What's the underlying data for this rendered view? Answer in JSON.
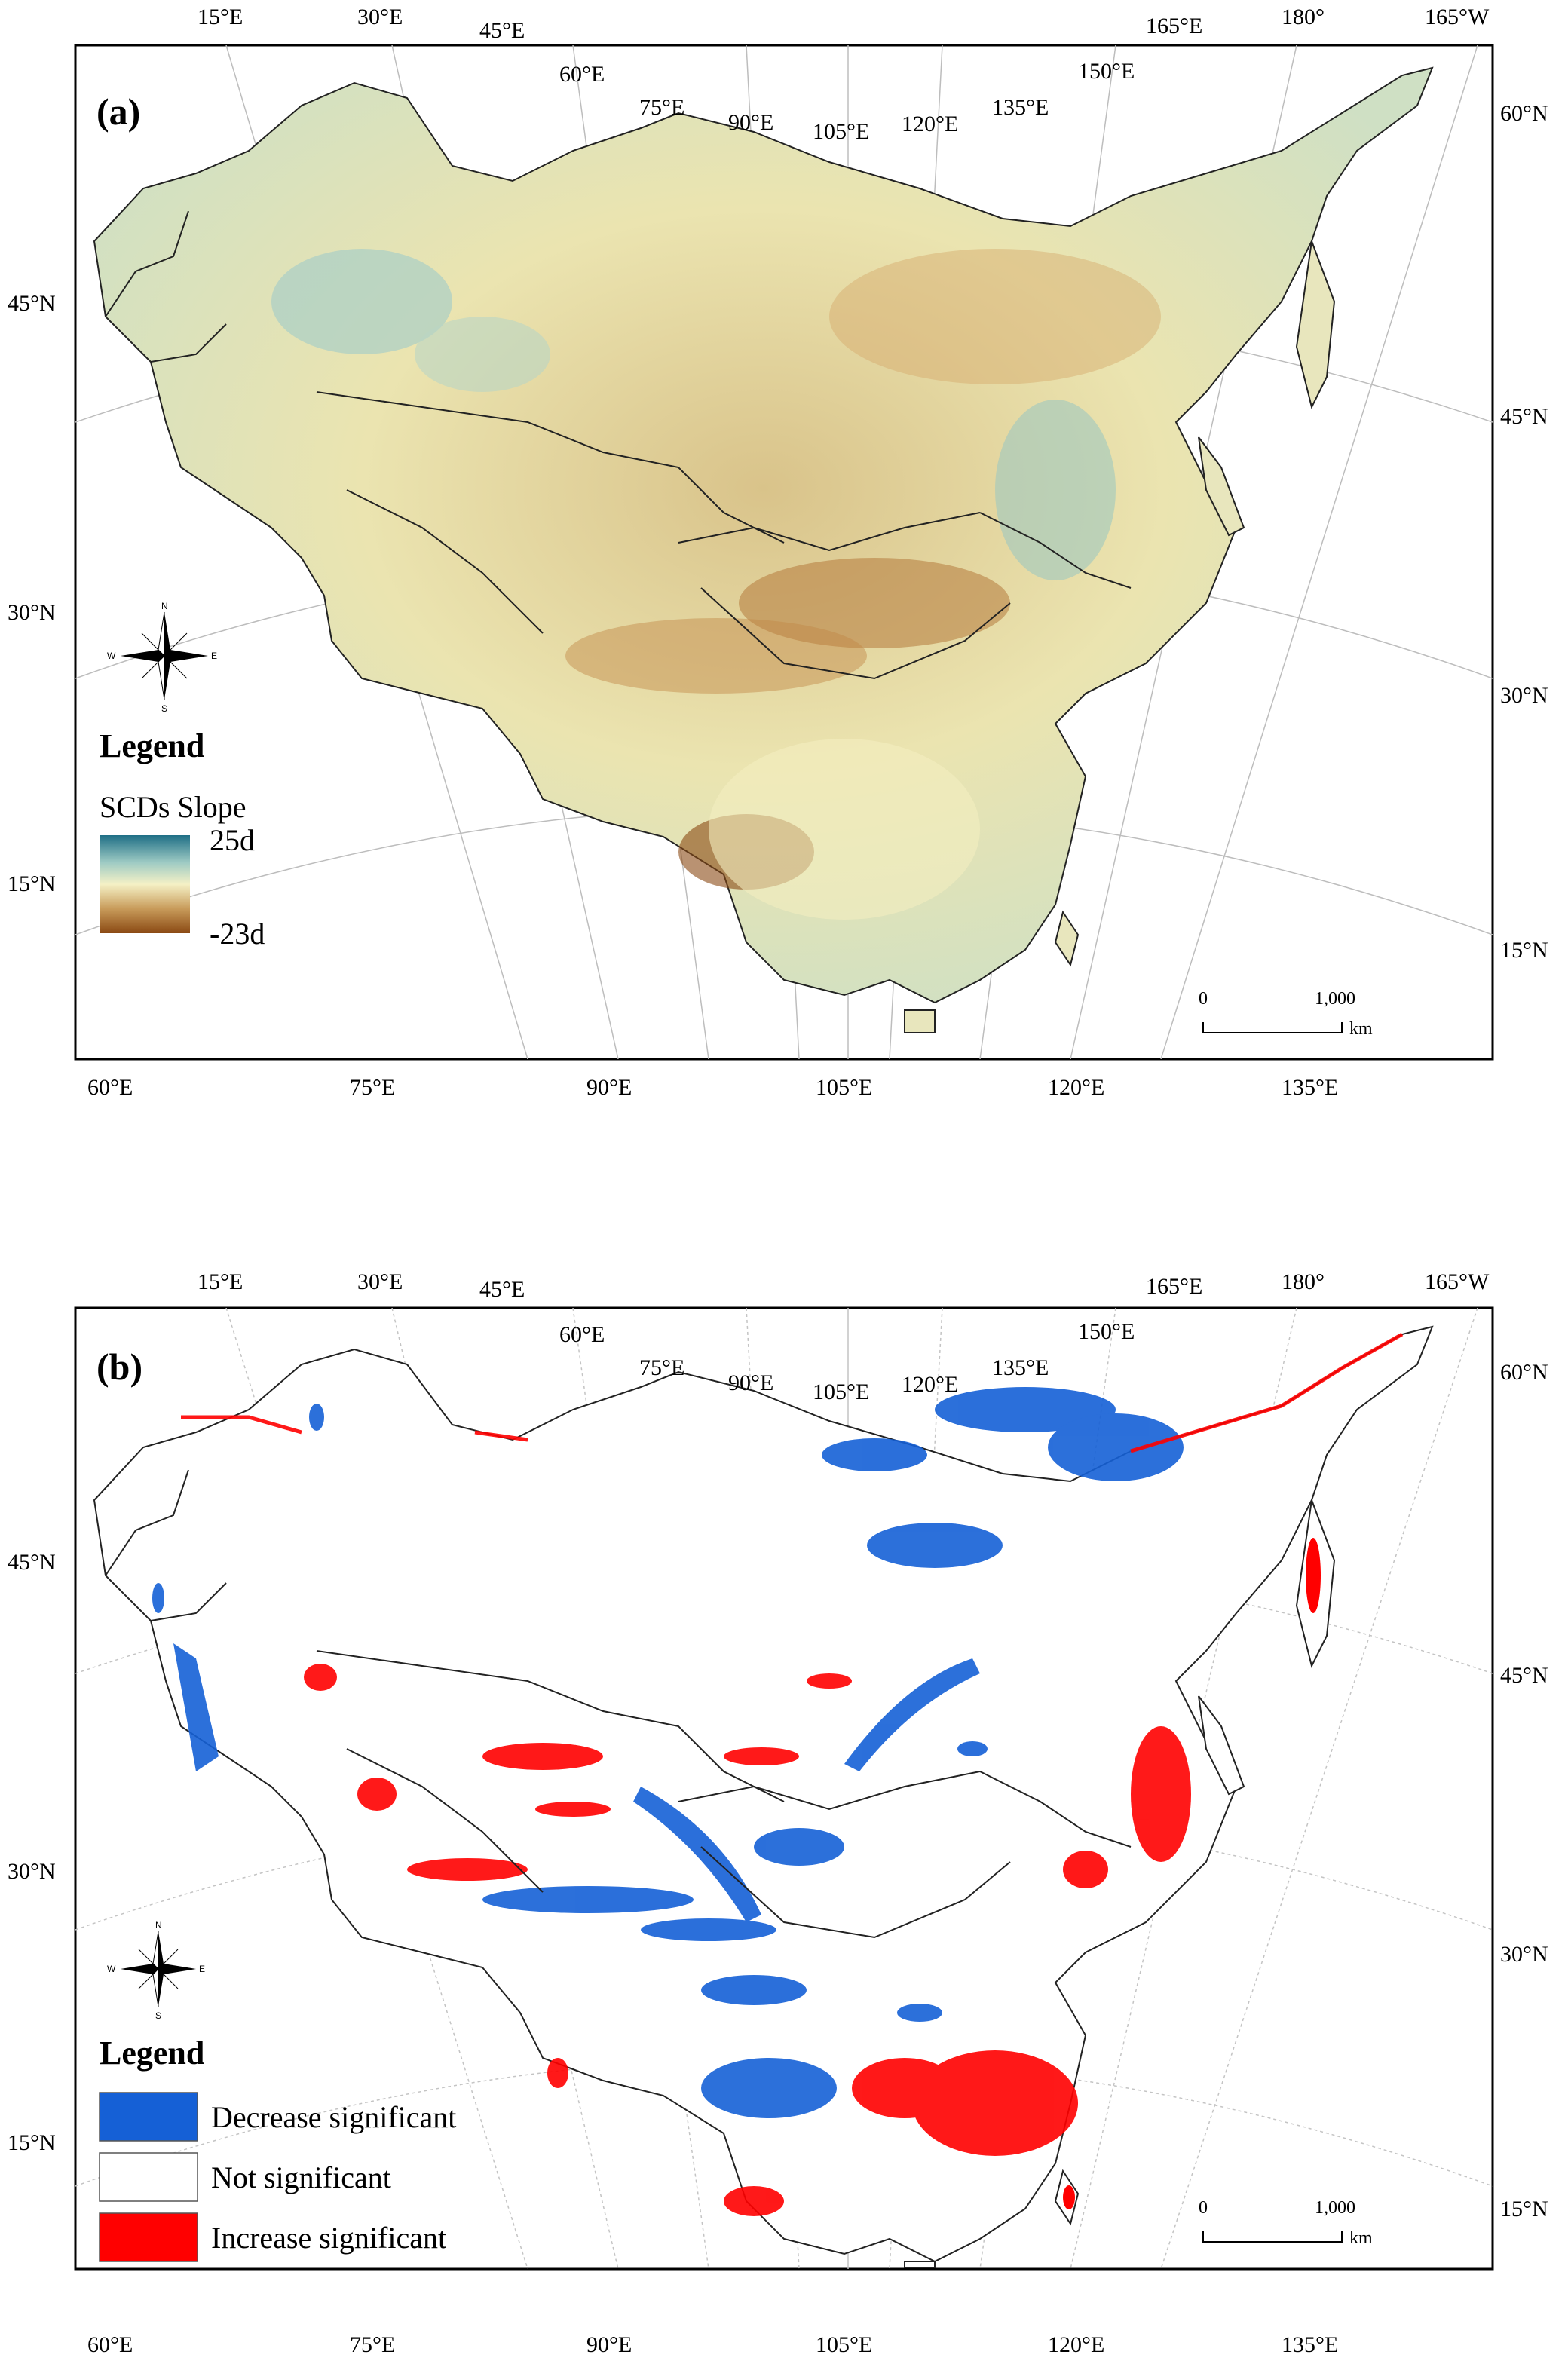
{
  "panels": [
    {
      "letter": "(a)",
      "top_labels": [
        "15°E",
        "30°E",
        "45°E",
        "60°E",
        "75°E",
        "90°E",
        "105°E",
        "120°E",
        "135°E",
        "150°E",
        "165°E",
        "180°",
        "165°W"
      ],
      "left_labels": [
        "45°N",
        "30°N",
        "15°N"
      ],
      "right_labels": [
        "60°N",
        "45°N",
        "30°N",
        "15°N"
      ],
      "bottom_labels": [
        "60°E",
        "75°E",
        "90°E",
        "105°E",
        "120°E",
        "135°E"
      ],
      "legend": {
        "title": "Legend",
        "subtitle": "SCDs Slope",
        "max_label": "25d",
        "min_label": "-23d",
        "gradient_colors": [
          "#1f6f86",
          "#9fcbc4",
          "#f5f1c6",
          "#c89b5a",
          "#8b4a14"
        ]
      },
      "compass": {
        "n": "N",
        "s": "S",
        "e": "E",
        "w": "W"
      },
      "scale": {
        "zero": "0",
        "value": "1,000",
        "unit": "km"
      }
    },
    {
      "letter": "(b)",
      "top_labels": [
        "15°E",
        "30°E",
        "45°E",
        "60°E",
        "75°E",
        "90°E",
        "105°E",
        "120°E",
        "135°E",
        "150°E",
        "165°E",
        "180°",
        "165°W"
      ],
      "left_labels": [
        "45°N",
        "30°N",
        "15°N"
      ],
      "right_labels": [
        "60°N",
        "45°N",
        "30°N",
        "15°N"
      ],
      "bottom_labels": [
        "60°E",
        "75°E",
        "90°E",
        "105°E",
        "120°E",
        "135°E"
      ],
      "legend": {
        "title": "Legend",
        "items": [
          {
            "label": "Decrease significant",
            "color": "#1560d6"
          },
          {
            "label": "Not significant",
            "color": "#ffffff"
          },
          {
            "label": "Increase significant",
            "color": "#ff0000"
          }
        ]
      },
      "compass": {
        "n": "N",
        "s": "S",
        "e": "E",
        "w": "W"
      },
      "scale": {
        "zero": "0",
        "value": "1,000",
        "unit": "km"
      }
    }
  ]
}
